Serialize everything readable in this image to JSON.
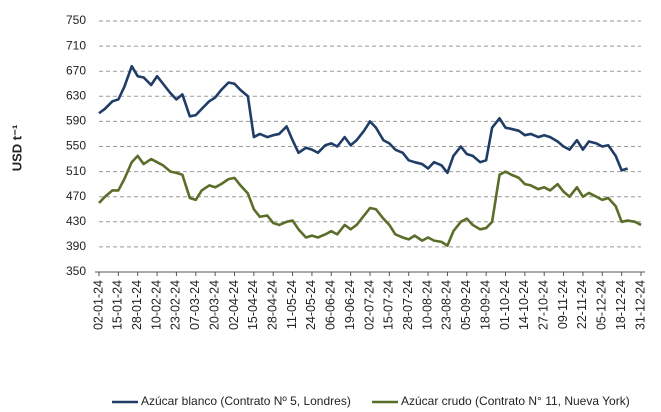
{
  "chart_data": {
    "type": "line",
    "y_label": "USD t⁻¹",
    "xlim": [
      "02-01-24",
      "31-12-24"
    ],
    "xticks": [
      "02-01-24",
      "15-01-24",
      "28-01-24",
      "10-02-24",
      "23-02-24",
      "07-03-24",
      "20-03-24",
      "02-04-24",
      "15-04-24",
      "28-04-24",
      "11-05-24",
      "24-05-24",
      "06-06-24",
      "19-06-24",
      "02-07-24",
      "15-07-24",
      "28-07-24",
      "10-08-24",
      "23-08-24",
      "05-09-24",
      "18-09-24",
      "01-10-24",
      "14-10-24",
      "27-10-24",
      "09-11-24",
      "22-11-24",
      "05-12-24",
      "18-12-24",
      "31-12-24"
    ],
    "ylim": [
      350,
      750
    ],
    "yticks": [
      350,
      390,
      430,
      470,
      510,
      550,
      590,
      630,
      670,
      710,
      750
    ],
    "grid": true,
    "legend": "bottom",
    "x": [
      "02-01-24",
      "06-01-24",
      "11-01-24",
      "15-01-24",
      "19-01-24",
      "24-01-24",
      "28-01-24",
      "01-02-24",
      "06-02-24",
      "10-02-24",
      "14-02-24",
      "19-02-24",
      "23-02-24",
      "27-02-24",
      "03-03-24",
      "07-03-24",
      "11-03-24",
      "16-03-24",
      "20-03-24",
      "24-03-24",
      "29-03-24",
      "02-04-24",
      "06-04-24",
      "11-04-24",
      "15-04-24",
      "19-04-24",
      "24-04-24",
      "28-04-24",
      "02-05-24",
      "07-05-24",
      "11-05-24",
      "15-05-24",
      "20-05-24",
      "24-05-24",
      "28-05-24",
      "02-06-24",
      "06-06-24",
      "10-06-24",
      "15-06-24",
      "19-06-24",
      "23-06-24",
      "28-06-24",
      "02-07-24",
      "06-07-24",
      "11-07-24",
      "15-07-24",
      "19-07-24",
      "24-07-24",
      "28-07-24",
      "01-08-24",
      "06-08-24",
      "10-08-24",
      "14-08-24",
      "19-08-24",
      "23-08-24",
      "27-08-24",
      "01-09-24",
      "05-09-24",
      "09-09-24",
      "14-09-24",
      "18-09-24",
      "22-09-24",
      "27-09-24",
      "01-10-24",
      "05-10-24",
      "10-10-24",
      "14-10-24",
      "18-10-24",
      "23-10-24",
      "27-10-24",
      "31-10-24",
      "05-11-24",
      "09-11-24",
      "13-11-24",
      "18-11-24",
      "22-11-24",
      "26-11-24",
      "01-12-24",
      "05-12-24",
      "09-12-24",
      "14-12-24",
      "18-12-24",
      "22-12-24",
      "27-12-24",
      "31-12-24"
    ],
    "series": [
      {
        "name": "Azúcar blanco (Contrato Nº 5, Londres)",
        "color": "#1f3d66",
        "values": [
          603,
          610,
          622,
          625,
          645,
          678,
          662,
          660,
          648,
          662,
          650,
          635,
          625,
          633,
          598,
          600,
          610,
          622,
          628,
          640,
          652,
          650,
          640,
          630,
          565,
          570,
          565,
          568,
          570,
          582,
          560,
          540,
          548,
          545,
          540,
          552,
          555,
          550,
          565,
          552,
          560,
          575,
          590,
          580,
          560,
          555,
          545,
          540,
          528,
          525,
          522,
          515,
          525,
          520,
          508,
          535,
          550,
          538,
          535,
          525,
          528,
          580,
          595,
          580,
          578,
          575,
          568,
          570,
          565,
          568,
          565,
          558,
          550,
          545,
          560,
          545,
          558,
          555,
          550,
          552,
          535,
          512,
          515,
          null,
          508
        ]
      },
      {
        "name": "Azúcar crudo (Contrato N° 11, Nueva York)",
        "color": "#5a6e2a",
        "values": [
          460,
          470,
          480,
          480,
          498,
          525,
          535,
          522,
          530,
          525,
          520,
          510,
          508,
          505,
          468,
          465,
          480,
          488,
          485,
          490,
          498,
          500,
          488,
          475,
          450,
          438,
          440,
          428,
          425,
          430,
          432,
          418,
          405,
          408,
          405,
          410,
          415,
          410,
          425,
          418,
          425,
          440,
          452,
          450,
          435,
          425,
          410,
          405,
          402,
          408,
          400,
          405,
          400,
          398,
          392,
          415,
          430,
          435,
          425,
          418,
          420,
          430,
          505,
          510,
          505,
          500,
          490,
          488,
          482,
          485,
          480,
          490,
          478,
          470,
          485,
          470,
          476,
          470,
          465,
          468,
          455,
          430,
          432,
          430,
          425
        ]
      }
    ]
  }
}
